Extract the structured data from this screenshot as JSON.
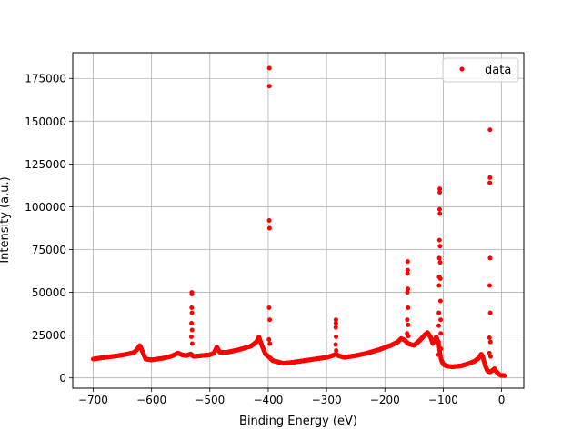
{
  "chart_data": {
    "type": "scatter",
    "title": "",
    "xlabel": "Binding Energy (eV)",
    "ylabel": "Intensity (a.u.)",
    "xlim": [
      -735,
      38
    ],
    "ylim": [
      -6000,
      190000
    ],
    "xticks": [
      -700,
      -600,
      -500,
      -400,
      -300,
      -200,
      -100,
      0
    ],
    "yticks": [
      0,
      25000,
      50000,
      75000,
      100000,
      125000,
      150000,
      175000
    ],
    "grid": true,
    "legend": {
      "placement": "top-right",
      "entries": [
        "data"
      ]
    },
    "series": [
      {
        "name": "data",
        "color": "#ff0000",
        "marker": "circle",
        "baseline": [
          [
            -700,
            11000
          ],
          [
            -680,
            12000
          ],
          [
            -660,
            12800
          ],
          [
            -640,
            14000
          ],
          [
            -630,
            14800
          ],
          [
            -625,
            16500
          ],
          [
            -620,
            19000
          ],
          [
            -615,
            15000
          ],
          [
            -610,
            11000
          ],
          [
            -600,
            10500
          ],
          [
            -580,
            11500
          ],
          [
            -565,
            12800
          ],
          [
            -555,
            14500
          ],
          [
            -548,
            13500
          ],
          [
            -540,
            13000
          ],
          [
            -533,
            14000
          ],
          [
            -528,
            12500
          ],
          [
            -515,
            13000
          ],
          [
            -500,
            13500
          ],
          [
            -493,
            14500
          ],
          [
            -488,
            18000
          ],
          [
            -483,
            15000
          ],
          [
            -470,
            15000
          ],
          [
            -450,
            16500
          ],
          [
            -430,
            18500
          ],
          [
            -420,
            21000
          ],
          [
            -416,
            24000
          ],
          [
            -412,
            20000
          ],
          [
            -405,
            14000
          ],
          [
            -398,
            12000
          ],
          [
            -392,
            10000
          ],
          [
            -385,
            9500
          ],
          [
            -375,
            8500
          ],
          [
            -360,
            9000
          ],
          [
            -340,
            10000
          ],
          [
            -320,
            11000
          ],
          [
            -300,
            12000
          ],
          [
            -290,
            13000
          ],
          [
            -284,
            14000
          ],
          [
            -280,
            13000
          ],
          [
            -270,
            12000
          ],
          [
            -250,
            13000
          ],
          [
            -230,
            14500
          ],
          [
            -210,
            16500
          ],
          [
            -190,
            19000
          ],
          [
            -178,
            21000
          ],
          [
            -172,
            23000
          ],
          [
            -166,
            22000
          ],
          [
            -160,
            20000
          ],
          [
            -150,
            19000
          ],
          [
            -140,
            22000
          ],
          [
            -132,
            25000
          ],
          [
            -127,
            26500
          ],
          [
            -122,
            24000
          ],
          [
            -118,
            20000
          ],
          [
            -112,
            24000
          ],
          [
            -108,
            20000
          ],
          [
            -104,
            11000
          ],
          [
            -100,
            8000
          ],
          [
            -95,
            7000
          ],
          [
            -85,
            6500
          ],
          [
            -70,
            7000
          ],
          [
            -55,
            8500
          ],
          [
            -45,
            10000
          ],
          [
            -38,
            12000
          ],
          [
            -35,
            14000
          ],
          [
            -32,
            12000
          ],
          [
            -28,
            7000
          ],
          [
            -24,
            4000
          ],
          [
            -20,
            3500
          ],
          [
            -15,
            4500
          ],
          [
            -12,
            5500
          ],
          [
            -10,
            4000
          ],
          [
            -6,
            2500
          ],
          [
            -2,
            1500
          ],
          [
            2,
            1500
          ],
          [
            5,
            1300
          ]
        ],
        "peaks": [
          {
            "x": -531,
            "values": [
              49000,
              50000,
              41000,
              38000,
              32000,
              28000,
              24000,
              20000
            ]
          },
          {
            "x": -398,
            "values": [
              181000,
              170500,
              92000,
              87500,
              41000,
              34000,
              22500,
              20000
            ]
          },
          {
            "x": -284,
            "values": [
              34000,
              32000,
              29500,
              24000,
              19500,
              16000
            ]
          },
          {
            "x": -161,
            "values": [
              68000,
              63000,
              61000,
              52000,
              50000,
              41000,
              34000,
              31000,
              26000,
              24500
            ]
          },
          {
            "x": -106,
            "values": [
              110500,
              108500,
              98500,
              96000,
              80500,
              77000,
              70000,
              67500,
              59000,
              58000,
              54000,
              45000,
              38000,
              34000,
              30500,
              26000,
              21000,
              17000,
              13500
            ]
          },
          {
            "x": -20,
            "values": [
              145000,
              117000,
              114000,
              70000,
              54000,
              38000,
              23500,
              21000,
              14500,
              12500
            ]
          }
        ]
      }
    ]
  }
}
